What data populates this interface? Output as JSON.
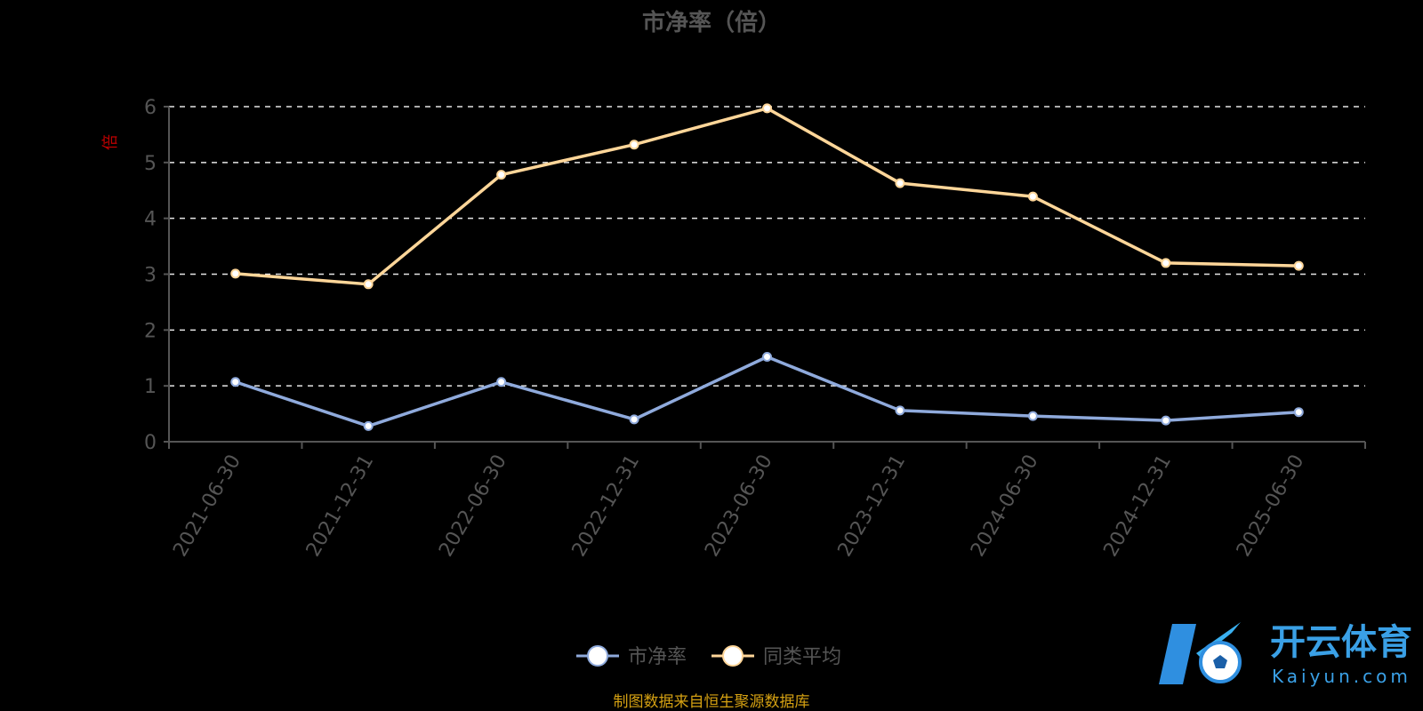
{
  "chart_data": {
    "type": "line",
    "title": "市净率（倍）",
    "ylabel": "倍",
    "categories": [
      "2021-06-30",
      "2021-12-31",
      "2022-06-30",
      "2022-12-31",
      "2023-06-30",
      "2023-12-31",
      "2024-06-30",
      "2024-12-31",
      "2025-06-30"
    ],
    "ylim": [
      0,
      6
    ],
    "yticks": [
      0,
      1,
      2,
      3,
      4,
      5,
      6
    ],
    "grid": true,
    "legend_position": "bottom",
    "series": [
      {
        "name": "市净率",
        "color": "#8faadc",
        "values": [
          1.07,
          0.28,
          1.07,
          0.4,
          1.52,
          0.56,
          0.46,
          0.38,
          0.53
        ]
      },
      {
        "name": "同类平均",
        "color": "#ffd699",
        "values": [
          3.01,
          2.82,
          4.78,
          5.32,
          5.97,
          4.63,
          4.39,
          3.2,
          3.15
        ]
      }
    ]
  },
  "source": "制图数据来自恒生聚源数据库",
  "logo": {
    "name": "开云体育",
    "domain": "Kaiyun.com"
  }
}
